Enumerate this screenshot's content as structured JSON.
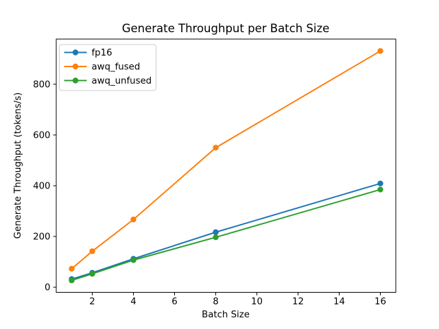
{
  "chart_data": {
    "type": "line",
    "title": "Generate Throughput per Batch Size",
    "xlabel": "Batch Size",
    "ylabel": "Generate Throughput (tokens/s)",
    "x": [
      1,
      2,
      4,
      8,
      16
    ],
    "series": [
      {
        "name": "fp16",
        "color": "#1f77b4",
        "values": [
          32,
          57,
          112,
          217,
          409
        ]
      },
      {
        "name": "awq_fused",
        "color": "#ff7f0e",
        "values": [
          73,
          142,
          267,
          550,
          931
        ]
      },
      {
        "name": "awq_unfused",
        "color": "#2ca02c",
        "values": [
          27,
          53,
          107,
          197,
          385
        ]
      }
    ],
    "xticks": [
      2,
      4,
      6,
      8,
      10,
      12,
      14,
      16
    ],
    "yticks": [
      0,
      200,
      400,
      600,
      800
    ],
    "xlim": [
      0.25,
      16.75
    ],
    "ylim": [
      -20,
      978
    ],
    "legend_position": "upper-left",
    "grid": false,
    "background_color": "#ffffff",
    "axis_color": "#000000",
    "legend_border_color": "#cccccc"
  }
}
